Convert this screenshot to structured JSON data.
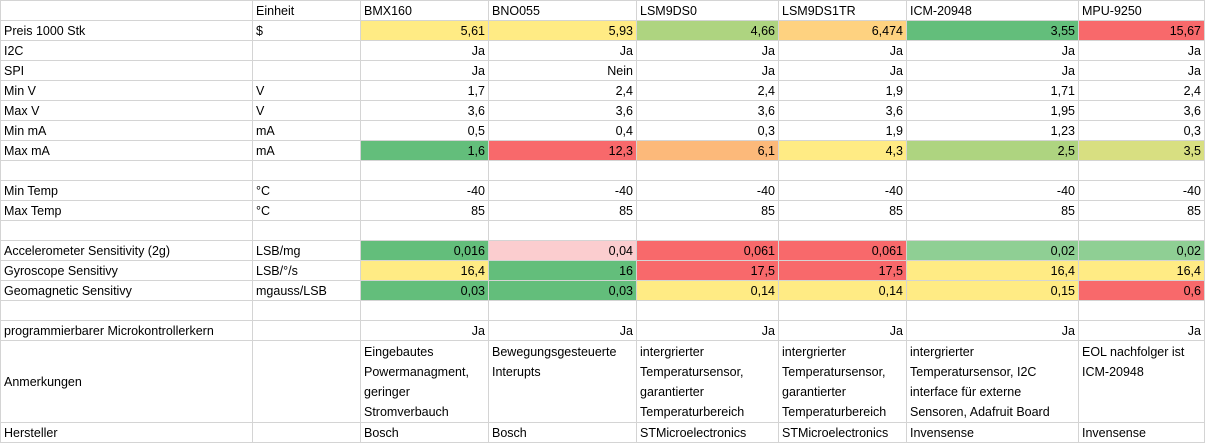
{
  "header": {
    "unit": "Einheit",
    "sensors": [
      "BMX160",
      "BNO055",
      "LSM9DS0",
      "LSM9DS1TR",
      "ICM-20948",
      "MPU-9250"
    ]
  },
  "rows": {
    "price": {
      "label": "Preis 1000 Stk",
      "unit": "$",
      "values": [
        "5,61",
        "5,93",
        "4,66",
        "6,474",
        "3,55",
        "15,67"
      ]
    },
    "i2c": {
      "label": "I2C",
      "unit": "",
      "values": [
        "Ja",
        "Ja",
        "Ja",
        "Ja",
        "Ja",
        "Ja"
      ]
    },
    "spi": {
      "label": "SPI",
      "unit": "",
      "values": [
        "Ja",
        "Nein",
        "Ja",
        "Ja",
        "Ja",
        "Ja"
      ]
    },
    "minv": {
      "label": "Min V",
      "unit": "V",
      "values": [
        "1,7",
        "2,4",
        "2,4",
        "1,9",
        "1,71",
        "2,4"
      ]
    },
    "maxv": {
      "label": "Max V",
      "unit": "V",
      "values": [
        "3,6",
        "3,6",
        "3,6",
        "3,6",
        "1,95",
        "3,6"
      ]
    },
    "minma": {
      "label": "Min mA",
      "unit": "mA",
      "values": [
        "0,5",
        "0,4",
        "0,3",
        "1,9",
        "1,23",
        "0,3"
      ]
    },
    "maxma": {
      "label": "Max mA",
      "unit": "mA",
      "values": [
        "1,6",
        "12,3",
        "6,1",
        "4,3",
        "2,5",
        "3,5"
      ]
    },
    "mintemp": {
      "label": "Min Temp",
      "unit": "°C",
      "values": [
        "-40",
        "-40",
        "-40",
        "-40",
        "-40",
        "-40"
      ]
    },
    "maxtemp": {
      "label": "Max Temp",
      "unit": "°C",
      "values": [
        "85",
        "85",
        "85",
        "85",
        "85",
        "85"
      ]
    },
    "accel": {
      "label": "Accelerometer Sensitivity (2g)",
      "unit": "LSB/mg",
      "values": [
        "0,016",
        "0,04",
        "0,061",
        "0,061",
        "0,02",
        "0,02"
      ]
    },
    "gyro": {
      "label": "Gyroscope Sensitivy",
      "unit": "LSB/°/s",
      "values": [
        "16,4",
        "16",
        "17,5",
        "17,5",
        "16,4",
        "16,4"
      ]
    },
    "geomag": {
      "label": "Geomagnetic Sensitivy",
      "unit": "mgauss/LSB",
      "values": [
        "0,03",
        "0,03",
        "0,14",
        "0,14",
        "0,15",
        "0,6"
      ]
    },
    "mcu": {
      "label": "programmierbarer Microkontrollerkern",
      "unit": "",
      "values": [
        "Ja",
        "Ja",
        "Ja",
        "Ja",
        "Ja",
        "Ja"
      ]
    },
    "notes": {
      "label": "Anmerkungen",
      "unit": "",
      "values": [
        "Eingebautes Powermanagment, geringer Stromverbauch",
        "Bewegungsgesteuerte Interupts",
        "intergrierter Temperatursensor, garantierter Temperaturbereich",
        "intergrierter Temperatursensor, garantierter Temperaturbereich",
        "intergrierter Temperatursensor, I2C interface für externe Sensoren, Adafruit Board",
        "EOL nachfolger ist ICM-20948"
      ]
    },
    "maker": {
      "label": "Hersteller",
      "unit": "",
      "values": [
        "Bosch",
        "Bosch",
        "STMicroelectronics",
        "STMicroelectronics",
        "Invensense",
        "Invensense"
      ]
    }
  },
  "colors": {
    "green": "#63be7b",
    "light_green": "#8fcf94",
    "yellow_green": "#aed480",
    "lime": "#d8df81",
    "yellow": "#ffeb84",
    "light_orange": "#fed280",
    "orange": "#fcb97a",
    "red": "#f8696b",
    "pink": "#fbcdcf"
  }
}
